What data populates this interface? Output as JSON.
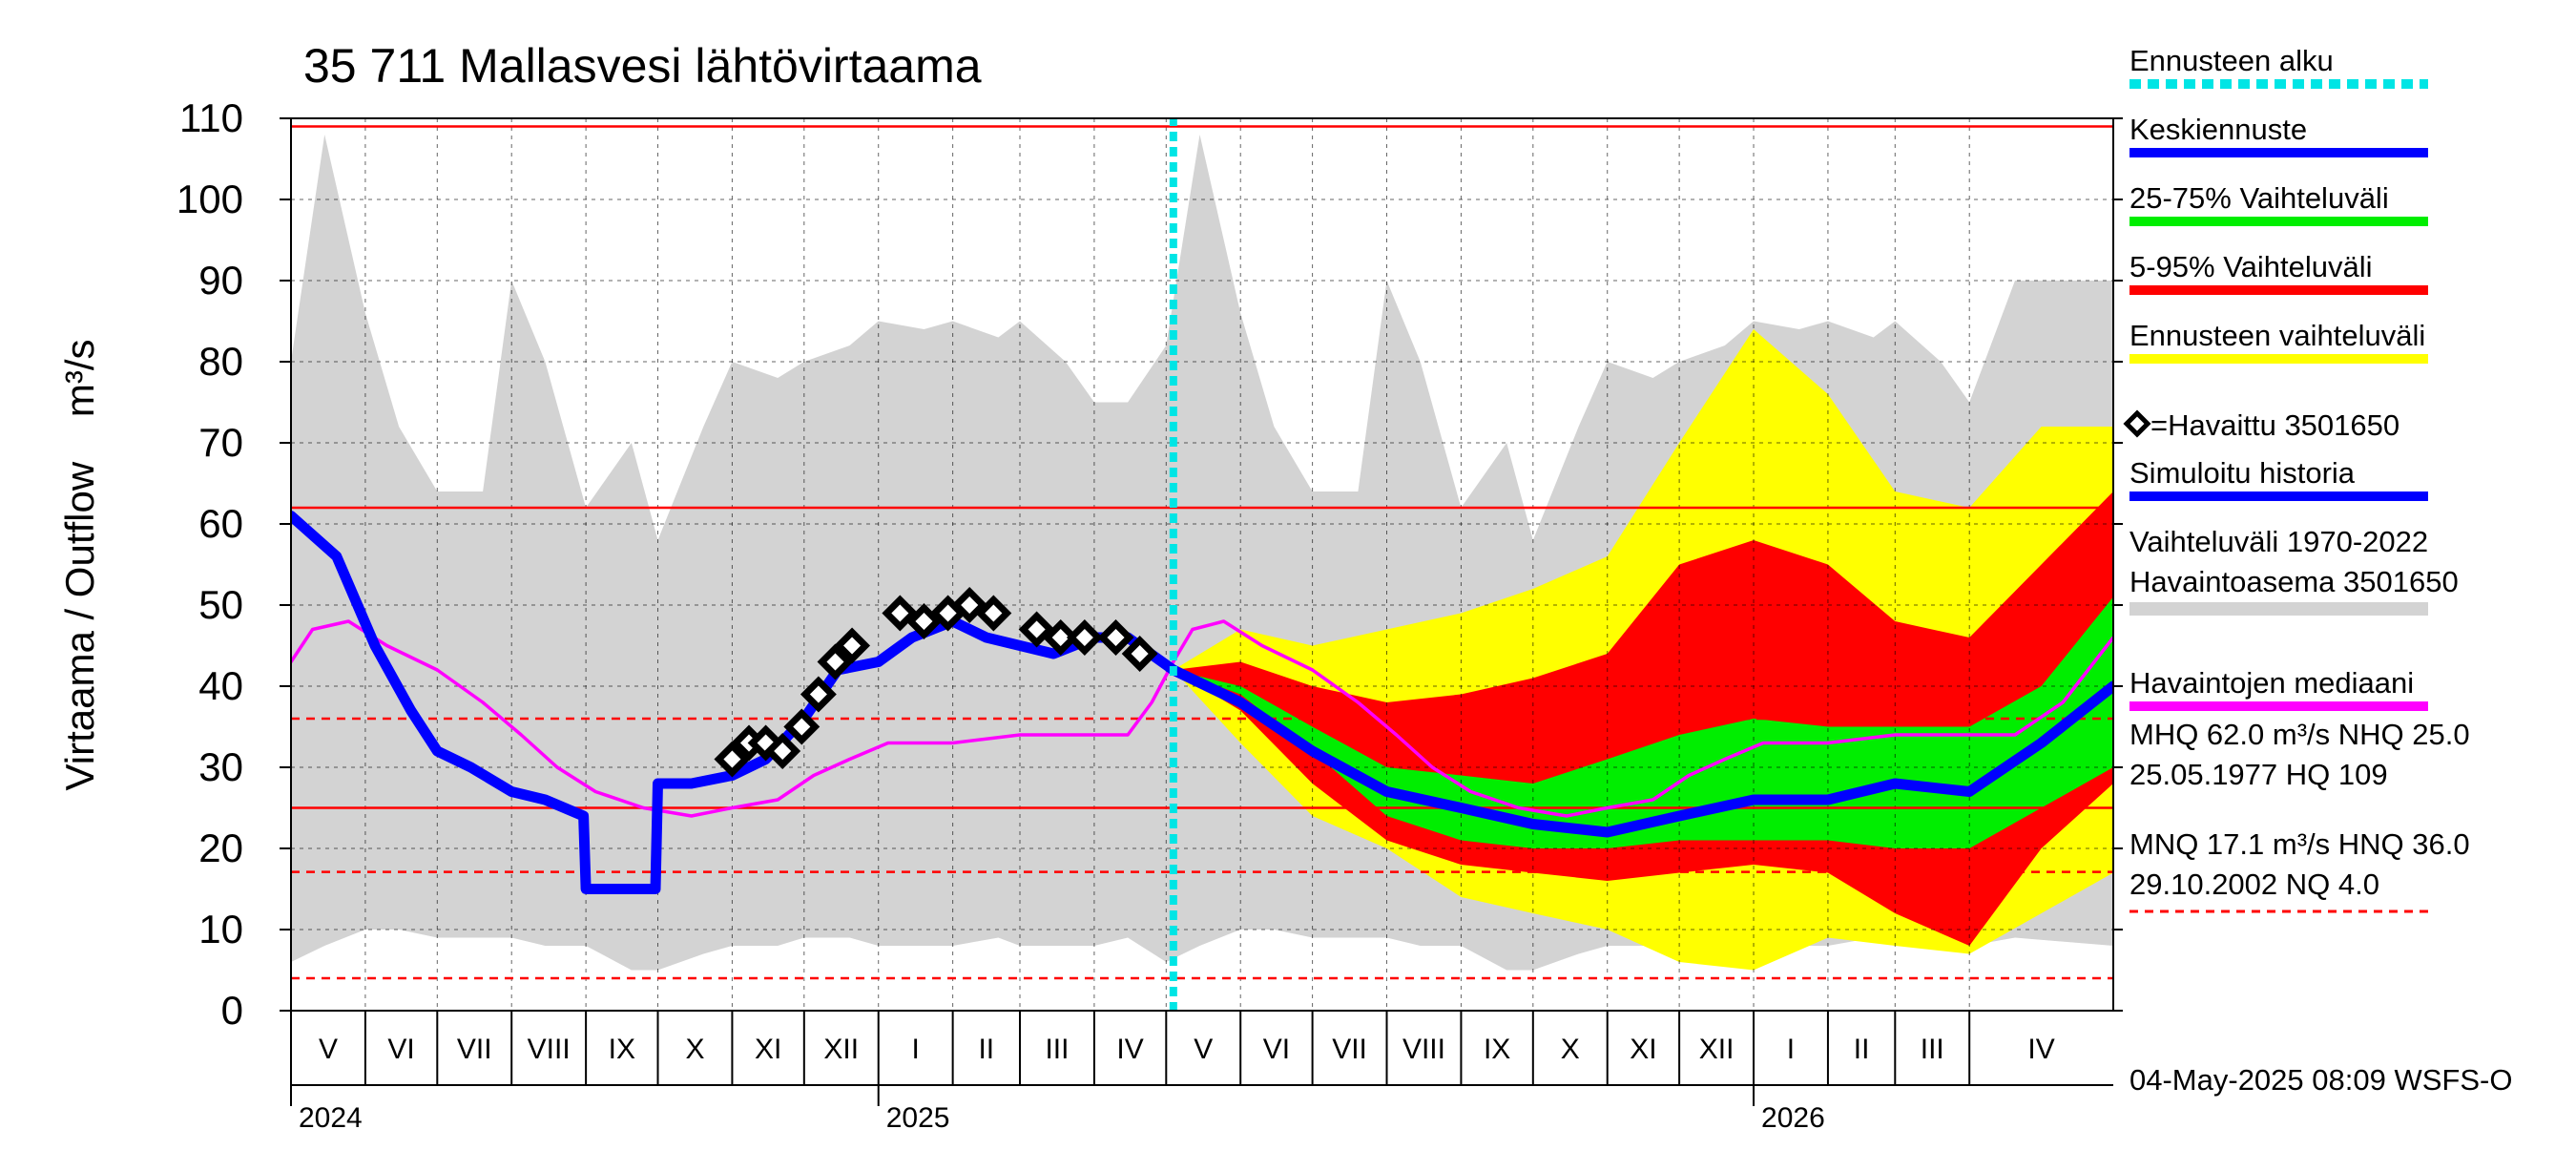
{
  "chart_data": {
    "type": "area",
    "title": "35 711 Mallasvesi lähtövirtaama",
    "ylabel": "Virtaama / Outflow    m³/s",
    "ylim": [
      0,
      110
    ],
    "y_ticks": [
      0,
      10,
      20,
      30,
      40,
      50,
      60,
      70,
      80,
      90,
      100,
      110
    ],
    "x_start": "2024-05-01",
    "x_end": "2026-05-31",
    "forecast_start": "2025-05-04",
    "months": [
      {
        "label": "V",
        "start": "2024-05-01"
      },
      {
        "label": "VI",
        "start": "2024-06-01"
      },
      {
        "label": "VII",
        "start": "2024-07-01"
      },
      {
        "label": "VIII",
        "start": "2024-08-01"
      },
      {
        "label": "IX",
        "start": "2024-09-01"
      },
      {
        "label": "X",
        "start": "2024-10-01"
      },
      {
        "label": "XI",
        "start": "2024-11-01"
      },
      {
        "label": "XII",
        "start": "2024-12-01"
      },
      {
        "label": "I",
        "start": "2025-01-01"
      },
      {
        "label": "II",
        "start": "2025-02-01"
      },
      {
        "label": "III",
        "start": "2025-03-01"
      },
      {
        "label": "IV",
        "start": "2025-04-01"
      },
      {
        "label": "V",
        "start": "2025-05-01"
      },
      {
        "label": "VI",
        "start": "2025-06-01"
      },
      {
        "label": "VII",
        "start": "2025-07-01"
      },
      {
        "label": "VIII",
        "start": "2025-08-01"
      },
      {
        "label": "IX",
        "start": "2025-09-01"
      },
      {
        "label": "X",
        "start": "2025-10-01"
      },
      {
        "label": "XI",
        "start": "2025-11-01"
      },
      {
        "label": "XII",
        "start": "2025-12-01"
      },
      {
        "label": "I",
        "start": "2026-01-01"
      },
      {
        "label": "II",
        "start": "2026-02-01"
      },
      {
        "label": "III",
        "start": "2026-03-01"
      },
      {
        "label": "IV",
        "start": "2026-04-01"
      }
    ],
    "year_labels": [
      {
        "label": "2024",
        "date": "2024-05-01"
      },
      {
        "label": "2025",
        "date": "2025-01-01"
      },
      {
        "label": "2026",
        "date": "2026-01-01"
      }
    ],
    "reference_lines": [
      {
        "name": "HQ",
        "value": 109,
        "style": "solid"
      },
      {
        "name": "MHQ",
        "value": 62.0,
        "style": "solid"
      },
      {
        "name": "HNQ",
        "value": 36.0,
        "style": "dashed"
      },
      {
        "name": "NHQ",
        "value": 25.0,
        "style": "solid"
      },
      {
        "name": "MNQ",
        "value": 17.1,
        "style": "dashed"
      },
      {
        "name": "NQ",
        "value": 4.0,
        "style": "dashed"
      }
    ],
    "series": [
      {
        "name": "Vaihteluväli 1970-2022 Havaintoasema 3501650",
        "kind": "band",
        "color": "#d3d3d3",
        "x": [
          "2024-05-01",
          "2024-05-15",
          "2024-06-01",
          "2024-06-15",
          "2024-07-01",
          "2024-07-20",
          "2024-08-01",
          "2024-08-15",
          "2024-09-01",
          "2024-09-20",
          "2024-10-01",
          "2024-10-20",
          "2024-11-01",
          "2024-11-20",
          "2024-12-01",
          "2024-12-20",
          "2025-01-01",
          "2025-01-20",
          "2025-02-01",
          "2025-02-20",
          "2025-03-01",
          "2025-03-20",
          "2025-04-01",
          "2025-04-15",
          "2025-05-01",
          "2025-05-15",
          "2025-06-01",
          "2025-06-15",
          "2025-07-01",
          "2025-07-20",
          "2025-08-01",
          "2025-08-15",
          "2025-09-01",
          "2025-09-20",
          "2025-10-01",
          "2025-10-20",
          "2025-11-01",
          "2025-11-20",
          "2025-12-01",
          "2025-12-20",
          "2026-01-01",
          "2026-01-20",
          "2026-02-01",
          "2026-02-20",
          "2026-03-01",
          "2026-03-20",
          "2026-04-01",
          "2026-04-20",
          "2026-05-31"
        ],
        "low": [
          6,
          8,
          10,
          10,
          9,
          9,
          9,
          8,
          8,
          5,
          5,
          7,
          8,
          8,
          9,
          9,
          8,
          8,
          8,
          9,
          8,
          8,
          8,
          9,
          6,
          8,
          10,
          10,
          9,
          9,
          9,
          8,
          8,
          5,
          5,
          7,
          8,
          8,
          9,
          9,
          8,
          8,
          8,
          9,
          8,
          8,
          8,
          9,
          8
        ],
        "high": [
          80,
          108,
          86,
          72,
          64,
          64,
          90,
          80,
          62,
          70,
          58,
          72,
          80,
          78,
          80,
          82,
          85,
          84,
          85,
          83,
          85,
          80,
          75,
          75,
          82,
          108,
          86,
          72,
          64,
          64,
          90,
          80,
          62,
          70,
          58,
          72,
          80,
          78,
          80,
          82,
          85,
          84,
          85,
          83,
          85,
          80,
          75,
          90,
          90
        ]
      },
      {
        "name": "Ennusteen vaihteluväli",
        "kind": "band",
        "color": "#ffff00",
        "x": [
          "2025-05-04",
          "2025-06-01",
          "2025-07-01",
          "2025-08-01",
          "2025-09-01",
          "2025-10-01",
          "2025-11-01",
          "2025-12-01",
          "2026-01-01",
          "2026-02-01",
          "2026-03-01",
          "2026-04-01",
          "2026-05-01",
          "2026-05-31"
        ],
        "low": [
          42,
          33,
          24,
          20,
          14,
          12,
          10,
          6,
          5,
          9,
          8,
          7,
          12,
          17
        ],
        "high": [
          42,
          47,
          45,
          47,
          49,
          52,
          56,
          70,
          84,
          76,
          64,
          62,
          72,
          72
        ]
      },
      {
        "name": "5-95% Vaihteluväli",
        "kind": "band",
        "color": "#ff0000",
        "x": [
          "2025-05-04",
          "2025-06-01",
          "2025-07-01",
          "2025-08-01",
          "2025-09-01",
          "2025-10-01",
          "2025-11-01",
          "2025-12-01",
          "2026-01-01",
          "2026-02-01",
          "2026-03-01",
          "2026-04-01",
          "2026-05-01",
          "2026-05-31"
        ],
        "low": [
          42,
          37,
          28,
          21,
          18,
          17,
          16,
          17,
          18,
          17,
          12,
          8,
          20,
          28
        ],
        "high": [
          42,
          43,
          40,
          38,
          39,
          41,
          44,
          55,
          58,
          55,
          48,
          46,
          55,
          64
        ]
      },
      {
        "name": "25-75% Vaihteluväli",
        "kind": "band",
        "color": "#00ee00",
        "x": [
          "2025-05-04",
          "2025-06-01",
          "2025-07-01",
          "2025-08-01",
          "2025-09-01",
          "2025-10-01",
          "2025-11-01",
          "2025-12-01",
          "2026-01-01",
          "2026-02-01",
          "2026-03-01",
          "2026-04-01",
          "2026-05-01",
          "2026-05-31"
        ],
        "low": [
          42,
          39,
          32,
          24,
          21,
          20,
          20,
          21,
          21,
          21,
          20,
          20,
          25,
          30
        ],
        "high": [
          42,
          40,
          35,
          30,
          29,
          28,
          31,
          34,
          36,
          35,
          35,
          35,
          40,
          51
        ]
      },
      {
        "name": "Havaintojen mediaani",
        "kind": "line",
        "color": "#ff00ff",
        "x": [
          "2024-05-01",
          "2024-05-10",
          "2024-05-25",
          "2024-06-10",
          "2024-07-01",
          "2024-07-20",
          "2024-08-05",
          "2024-08-20",
          "2024-09-05",
          "2024-09-25",
          "2024-10-15",
          "2024-11-01",
          "2024-11-20",
          "2024-12-05",
          "2024-12-20",
          "2025-01-05",
          "2025-02-01",
          "2025-03-01",
          "2025-04-01",
          "2025-04-15",
          "2025-04-25",
          "2025-05-04",
          "2025-05-12",
          "2025-05-25",
          "2025-06-10",
          "2025-07-01",
          "2025-07-20",
          "2025-08-05",
          "2025-08-20",
          "2025-09-05",
          "2025-09-25",
          "2025-10-15",
          "2025-11-01",
          "2025-11-20",
          "2025-12-05",
          "2025-12-20",
          "2026-01-05",
          "2026-02-01",
          "2026-03-01",
          "2026-04-01",
          "2026-04-20",
          "2026-05-10",
          "2026-05-31"
        ],
        "y": [
          43,
          47,
          48,
          45,
          42,
          38,
          34,
          30,
          27,
          25,
          24,
          25,
          26,
          29,
          31,
          33,
          33,
          34,
          34,
          34,
          38,
          43,
          47,
          48,
          45,
          42,
          38,
          34,
          30,
          27,
          25,
          24,
          25,
          26,
          29,
          31,
          33,
          33,
          34,
          34,
          34,
          38,
          46
        ]
      },
      {
        "name": "Simuloitu historia",
        "kind": "line",
        "color": "#0000ff",
        "x": [
          "2024-05-01",
          "2024-05-20",
          "2024-06-05",
          "2024-06-20",
          "2024-07-01",
          "2024-07-15",
          "2024-08-01",
          "2024-08-15",
          "2024-08-31",
          "2024-09-01",
          "2024-09-30",
          "2024-10-01",
          "2024-10-15",
          "2024-11-01",
          "2024-11-15",
          "2024-12-01",
          "2024-12-15",
          "2025-01-01",
          "2025-01-15",
          "2025-02-01",
          "2025-02-15",
          "2025-03-01",
          "2025-03-15",
          "2025-04-01",
          "2025-04-15",
          "2025-05-04"
        ],
        "y": [
          61,
          56,
          45,
          37,
          32,
          30,
          27,
          26,
          24,
          15,
          15,
          28,
          28,
          29,
          31,
          36,
          42,
          43,
          46,
          48,
          46,
          45,
          44,
          46,
          46,
          42
        ]
      },
      {
        "name": "Keskiennuste",
        "kind": "line",
        "color": "#0000ff",
        "x": [
          "2025-05-04",
          "2025-06-01",
          "2025-07-01",
          "2025-08-01",
          "2025-09-01",
          "2025-10-01",
          "2025-11-01",
          "2025-12-01",
          "2026-01-01",
          "2026-02-01",
          "2026-03-01",
          "2026-04-01",
          "2026-05-01",
          "2026-05-31"
        ],
        "y": [
          42,
          38,
          32,
          27,
          25,
          23,
          22,
          24,
          26,
          26,
          28,
          27,
          33,
          40
        ]
      },
      {
        "name": "Havaittu 3501650",
        "kind": "markers",
        "color": "#000000",
        "x": [
          "2024-11-01",
          "2024-11-08",
          "2024-11-15",
          "2024-11-22",
          "2024-11-30",
          "2024-12-07",
          "2024-12-14",
          "2024-12-21",
          "2025-01-10",
          "2025-01-20",
          "2025-01-30",
          "2025-02-08",
          "2025-02-18",
          "2025-03-08",
          "2025-03-18",
          "2025-03-28",
          "2025-04-10",
          "2025-04-20"
        ],
        "y": [
          31,
          33,
          33,
          32,
          35,
          39,
          43,
          45,
          49,
          48,
          49,
          50,
          49,
          47,
          46,
          46,
          46,
          44
        ]
      }
    ]
  },
  "legend": [
    {
      "label": "Ennusteen alku",
      "color": "#00e5e5",
      "style": "dotted"
    },
    {
      "label": "Keskiennuste",
      "color": "#0000ff",
      "style": "solid"
    },
    {
      "label": "25-75% Vaihteluväli",
      "color": "#00ee00",
      "style": "solid"
    },
    {
      "label": "5-95% Vaihteluväli",
      "color": "#ff0000",
      "style": "solid"
    },
    {
      "label": "Ennusteen vaihteluväli",
      "color": "#ffff00",
      "style": "solid"
    },
    {
      "label": "=Havaittu 3501650",
      "color": "#000000",
      "style": "marker"
    },
    {
      "label": "Simuloitu historia",
      "color": "#0000ff",
      "style": "solid"
    },
    {
      "label": "Vaihteluväli 1970-2022",
      "label2": " Havaintoasema 3501650",
      "color": "#d3d3d3",
      "style": "solid"
    },
    {
      "label": "Havaintojen mediaani",
      "color": "#ff00ff",
      "style": "solid"
    }
  ],
  "stats": {
    "line1": "MHQ 62.0 m³/s NHQ 25.0",
    "line2": "25.05.1977 HQ  109",
    "line3": "MNQ 17.1 m³/s HNQ 36.0",
    "line4": "29.10.2002 NQ  4.0"
  },
  "footer": "04-May-2025 08:09 WSFS-O"
}
